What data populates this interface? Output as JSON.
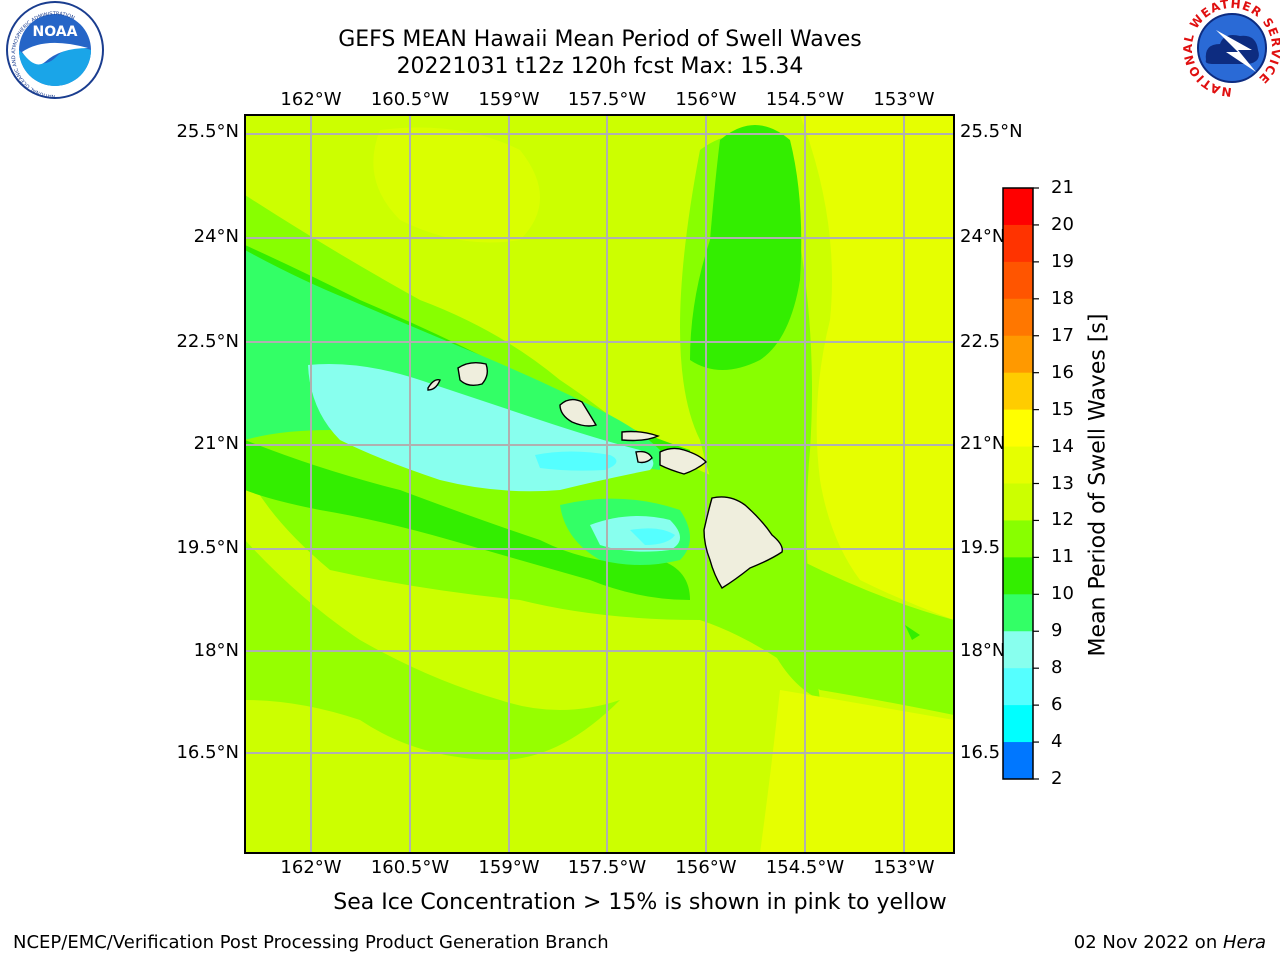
{
  "title": {
    "line1": "GEFS MEAN Hawaii Mean Period of Swell Waves",
    "line2": "20221031 t12z 120h fcst   Max: 15.34"
  },
  "map": {
    "lon_labels": [
      "162°W",
      "160.5°W",
      "159°W",
      "157.5°W",
      "156°W",
      "154.5°W",
      "153°W"
    ],
    "lat_labels": [
      "25.5°N",
      "24°N",
      "22.5°N",
      "21°N",
      "19.5°N",
      "18°N",
      "16.5°N"
    ],
    "lat_labels_right": [
      "25.5°N",
      "24°N",
      "22.5",
      "21°N",
      "19.5",
      "18°N",
      "16.5"
    ]
  },
  "colorbar": {
    "label": "Mean Period of Swell Waves [s]",
    "ticks": [
      "21",
      "20",
      "19",
      "18",
      "17",
      "16",
      "15",
      "14",
      "13",
      "12",
      "11",
      "10",
      "9",
      "8",
      "6",
      "4",
      "2"
    ],
    "colors": [
      "#ff0000",
      "#ff3300",
      "#ff5500",
      "#ff7700",
      "#ff9900",
      "#ffcc00",
      "#ffff00",
      "#e6ff00",
      "#ccff00",
      "#88ff00",
      "#33ee00",
      "#33ff66",
      "#88ffee",
      "#55ffff",
      "#00ffff",
      "#0077ff",
      "#0000ff"
    ]
  },
  "note": "Sea Ice Concentration > 15% is shown in pink to yellow",
  "footer": {
    "left": "NCEP/EMC/Verification Post Processing Product Generation Branch",
    "right_date": "02 Nov 2022 on ",
    "right_machine": "Hera"
  },
  "logos": {
    "noaa_text": "NOAA",
    "noaa_ring": "NATIONAL OCEANIC AND ATMOSPHERIC ADMINISTRATION",
    "noaa_ring_bottom": "U.S. DEPARTMENT OF COMMERCE",
    "nws_ring": "NATIONAL WEATHER SERVICE"
  }
}
